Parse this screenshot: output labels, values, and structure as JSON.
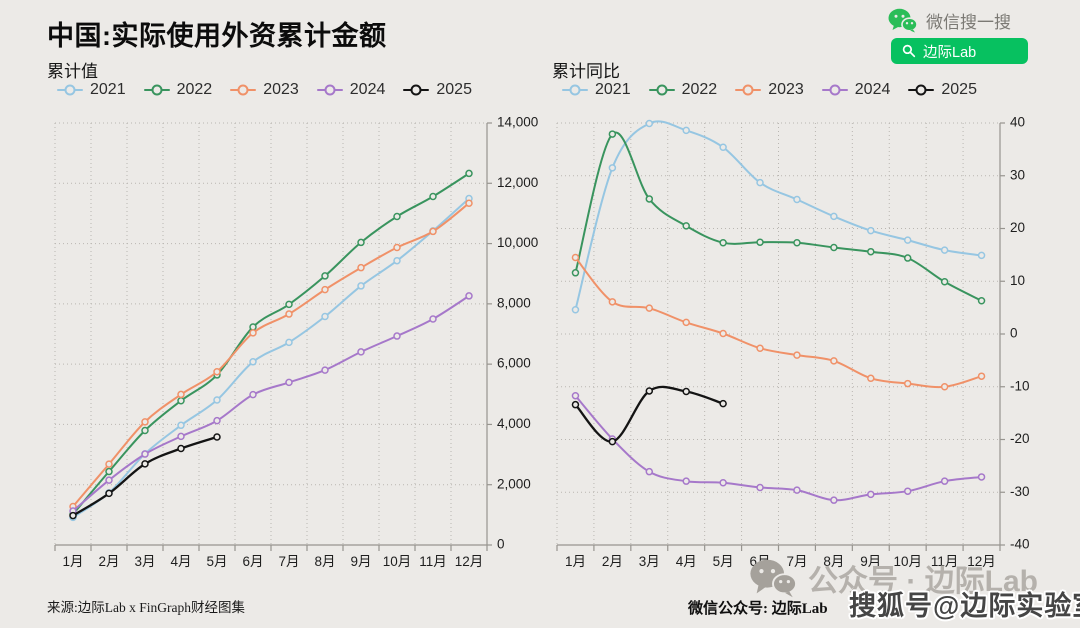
{
  "page": {
    "background": "#ECEAE7"
  },
  "header": {
    "title": "中国:实际使用外资累计金额",
    "wechat_search_label": "微信搜一搜",
    "search_button_label": "边际Lab",
    "accent_green": "#07C160"
  },
  "footer": {
    "source": "来源:边际Lab x FinGraph财经图集",
    "wechat_account": "微信公众号: 边际Lab",
    "watermark_official": "公众号 · 边际Lab",
    "watermark_sohu": "搜狐号@边际实验室"
  },
  "chart_data": [
    {
      "type": "line",
      "title": "累计值",
      "legend_position": "top",
      "grid": true,
      "x_labels": [
        "1月",
        "2月",
        "3月",
        "4月",
        "5月",
        "6月",
        "7月",
        "8月",
        "9月",
        "10月",
        "11月",
        "12月"
      ],
      "ylim": [
        0,
        14000
      ],
      "yticks": [
        0,
        2000,
        4000,
        6000,
        8000,
        10000,
        12000,
        14000
      ],
      "ytick_labels": [
        "0",
        "2,000",
        "4,000",
        "6,000",
        "8,000",
        "10,000",
        "12,000",
        "14,000"
      ],
      "series": [
        {
          "name": "2021",
          "color": "#96C6E2",
          "values": [
            916,
            1731,
            3025,
            3971,
            4810,
            6078,
            6722,
            7581,
            8595,
            9432,
            10422,
            11494
          ]
        },
        {
          "name": "2022",
          "color": "#39945E",
          "values": [
            1022,
            2437,
            3799,
            4786,
            5642,
            7233,
            7983,
            8927,
            10038,
            10899,
            11561,
            12327
          ]
        },
        {
          "name": "2023",
          "color": "#F09168",
          "values": [
            1277,
            2684,
            4085,
            4995,
            5748,
            7037,
            7662,
            8472,
            9200,
            9870,
            10403,
            11339
          ]
        },
        {
          "name": "2024",
          "color": "#A678CA",
          "values": [
            1127,
            2151,
            3017,
            3603,
            4125,
            4989,
            5395,
            5802,
            6406,
            6932,
            7497,
            8263
          ]
        },
        {
          "name": "2025",
          "color": "#141414",
          "values": [
            976,
            1712,
            2692,
            3202,
            3582
          ]
        }
      ]
    },
    {
      "type": "line",
      "title": "累计同比",
      "legend_position": "top",
      "grid": true,
      "x_labels": [
        "1月",
        "2月",
        "3月",
        "4月",
        "5月",
        "6月",
        "7月",
        "8月",
        "9月",
        "10月",
        "11月",
        "12月"
      ],
      "ylim": [
        -40,
        40
      ],
      "yticks": [
        -40,
        -30,
        -20,
        -10,
        0,
        10,
        20,
        30,
        40
      ],
      "ytick_labels": [
        "-40",
        "-30",
        "-20",
        "-10",
        "0",
        "10",
        "20",
        "30",
        "40"
      ],
      "series": [
        {
          "name": "2021",
          "color": "#96C6E2",
          "values": [
            4.6,
            31.5,
            39.9,
            38.6,
            35.4,
            28.7,
            25.5,
            22.3,
            19.6,
            17.8,
            15.9,
            14.9
          ]
        },
        {
          "name": "2022",
          "color": "#39945E",
          "values": [
            11.6,
            37.9,
            25.6,
            20.5,
            17.3,
            17.4,
            17.3,
            16.4,
            15.6,
            14.4,
            9.9,
            6.3
          ]
        },
        {
          "name": "2023",
          "color": "#F09168",
          "values": [
            14.5,
            6.1,
            4.9,
            2.2,
            0.1,
            -2.7,
            -4.0,
            -5.1,
            -8.4,
            -9.4,
            -10.0,
            -8.0
          ]
        },
        {
          "name": "2024",
          "color": "#A678CA",
          "values": [
            -11.7,
            -19.9,
            -26.1,
            -27.9,
            -28.2,
            -29.1,
            -29.6,
            -31.5,
            -30.4,
            -29.8,
            -27.9,
            -27.1
          ]
        },
        {
          "name": "2025",
          "color": "#141414",
          "values": [
            -13.4,
            -20.4,
            -10.8,
            -10.9,
            -13.2
          ]
        }
      ]
    }
  ]
}
